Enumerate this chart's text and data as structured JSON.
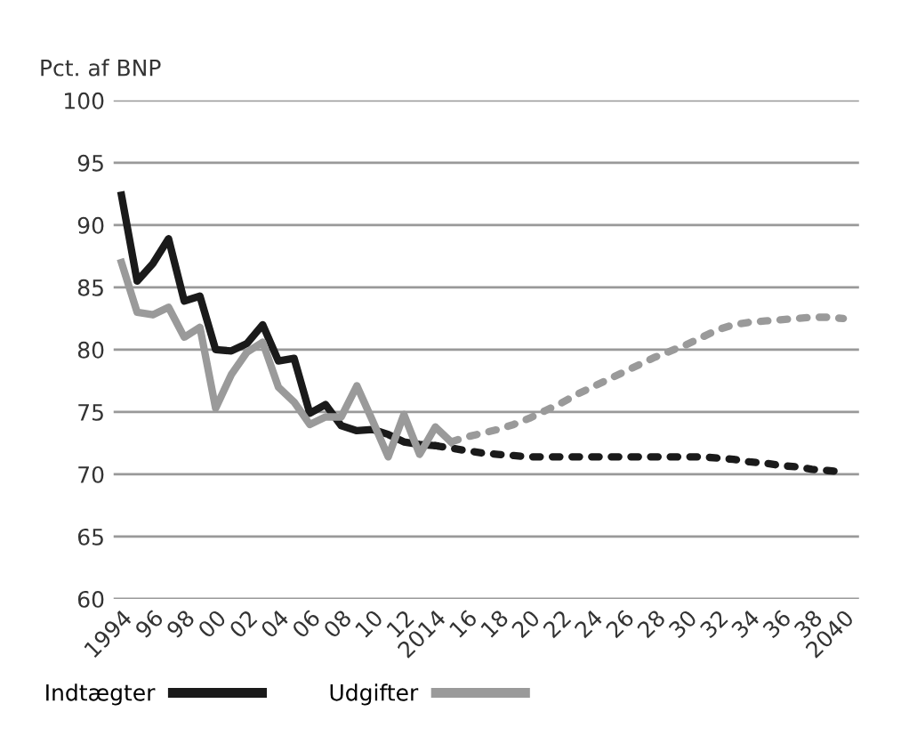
{
  "chart_data": {
    "type": "line",
    "ylabel": "Pct. af BNP",
    "x": [
      1994,
      1995,
      1996,
      1997,
      1998,
      1999,
      2000,
      2001,
      2002,
      2003,
      2004,
      2005,
      2006,
      2007,
      2008,
      2009,
      2010,
      2011,
      2012,
      2013,
      2014,
      2015,
      2016,
      2017,
      2018,
      2019,
      2020,
      2021,
      2022,
      2023,
      2024,
      2025,
      2026,
      2027,
      2028,
      2029,
      2030,
      2031,
      2032,
      2033,
      2034,
      2035,
      2036,
      2037,
      2038,
      2039,
      2040
    ],
    "series": [
      {
        "name": "Indtægter",
        "color": "#1a1a1a",
        "line_style": "solid",
        "values": [
          92.4,
          85.5,
          86.9,
          88.9,
          83.9,
          84.3,
          80.0,
          79.9,
          80.5,
          82.0,
          79.1,
          79.3,
          74.9,
          75.6,
          73.9,
          73.5,
          73.6,
          73.2,
          72.6,
          72.4,
          72.3,
          null,
          null,
          null,
          null,
          null,
          null,
          null,
          null,
          null,
          null,
          null,
          null,
          null,
          null,
          null,
          null,
          null,
          null,
          null,
          null,
          null,
          null,
          null,
          null,
          null,
          null
        ]
      },
      {
        "color": "#1a1a1a",
        "line_style": "dotted",
        "values": [
          null,
          null,
          null,
          null,
          null,
          null,
          null,
          null,
          null,
          null,
          null,
          null,
          null,
          null,
          null,
          null,
          null,
          null,
          null,
          null,
          72.3,
          72.1,
          71.9,
          71.7,
          71.6,
          71.5,
          71.4,
          71.4,
          71.4,
          71.4,
          71.4,
          71.4,
          71.4,
          71.4,
          71.4,
          71.4,
          71.4,
          71.4,
          71.3,
          71.2,
          71.0,
          70.9,
          70.7,
          70.6,
          70.4,
          70.3,
          70.2
        ]
      },
      {
        "name": "Udgifter",
        "color": "#9a9a9a",
        "line_style": "solid",
        "values": [
          87.0,
          83.0,
          82.8,
          83.4,
          81.0,
          81.8,
          75.3,
          78.0,
          79.8,
          80.6,
          77.0,
          75.8,
          74.0,
          74.6,
          74.6,
          77.1,
          74.3,
          71.4,
          74.8,
          71.6,
          73.8,
          72.6,
          null,
          null,
          null,
          null,
          null,
          null,
          null,
          null,
          null,
          null,
          null,
          null,
          null,
          null,
          null,
          null,
          null,
          null,
          null,
          null,
          null,
          null,
          null,
          null,
          null
        ]
      },
      {
        "color": "#9a9a9a",
        "line_style": "dotted",
        "values": [
          null,
          null,
          null,
          null,
          null,
          null,
          null,
          null,
          null,
          null,
          null,
          null,
          null,
          null,
          null,
          null,
          null,
          null,
          null,
          null,
          null,
          72.6,
          73.0,
          73.3,
          73.6,
          74.0,
          74.5,
          75.1,
          75.7,
          76.4,
          77.0,
          77.6,
          78.2,
          78.8,
          79.4,
          79.9,
          80.4,
          81.0,
          81.6,
          82.0,
          82.2,
          82.3,
          82.4,
          82.5,
          82.6,
          82.6,
          82.5
        ]
      }
    ],
    "xlim": [
      1993.5,
      2041
    ],
    "xticks": [
      {
        "value": 1994,
        "label": "1994"
      },
      {
        "value": 1996,
        "label": "96"
      },
      {
        "value": 1998,
        "label": "98"
      },
      {
        "value": 2000,
        "label": "00"
      },
      {
        "value": 2002,
        "label": "02"
      },
      {
        "value": 2004,
        "label": "04"
      },
      {
        "value": 2006,
        "label": "06"
      },
      {
        "value": 2008,
        "label": "08"
      },
      {
        "value": 2010,
        "label": "10"
      },
      {
        "value": 2012,
        "label": "12"
      },
      {
        "value": 2014,
        "label": "2014"
      },
      {
        "value": 2016,
        "label": "16"
      },
      {
        "value": 2018,
        "label": "18"
      },
      {
        "value": 2020,
        "label": "20"
      },
      {
        "value": 2022,
        "label": "22"
      },
      {
        "value": 2024,
        "label": "24"
      },
      {
        "value": 2026,
        "label": "26"
      },
      {
        "value": 2028,
        "label": "28"
      },
      {
        "value": 2030,
        "label": "30"
      },
      {
        "value": 2032,
        "label": "32"
      },
      {
        "value": 2034,
        "label": "34"
      },
      {
        "value": 2036,
        "label": "36"
      },
      {
        "value": 2038,
        "label": "38"
      },
      {
        "value": 2040,
        "label": "2040"
      }
    ],
    "ylim": [
      60,
      100
    ],
    "yticks": [
      60,
      65,
      70,
      75,
      80,
      85,
      90,
      95,
      100
    ],
    "grid": "y",
    "legend": "bottom",
    "marker": "none"
  }
}
